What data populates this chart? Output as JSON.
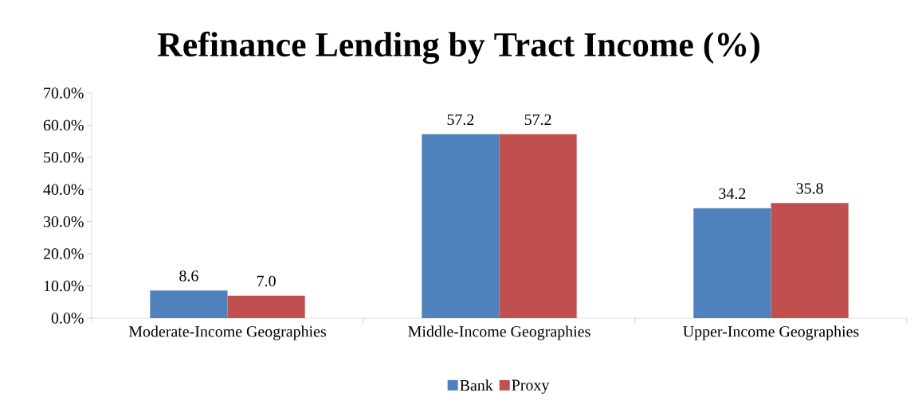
{
  "chart_data": {
    "type": "bar",
    "title": "Refinance Lending by Tract Income (%)",
    "categories": [
      "Moderate-Income Geographies",
      "Middle-Income Geographies",
      "Upper-Income Geographies"
    ],
    "series": [
      {
        "name": "Bank",
        "color": "#4f81bd",
        "values": [
          8.6,
          57.2,
          34.2
        ],
        "value_labels": [
          "8.6",
          "57.2",
          "34.2"
        ]
      },
      {
        "name": "Proxy",
        "color": "#c0504d",
        "values": [
          7.0,
          57.2,
          35.8
        ],
        "value_labels": [
          "7.0",
          "57.2",
          "35.8"
        ]
      }
    ],
    "ylim": [
      0,
      70
    ],
    "yticks": [
      {
        "value": 0,
        "label": "0.0%"
      },
      {
        "value": 10,
        "label": "10.0%"
      },
      {
        "value": 20,
        "label": "20.0%"
      },
      {
        "value": 30,
        "label": "30.0%"
      },
      {
        "value": 40,
        "label": "40.0%"
      },
      {
        "value": 50,
        "label": "50.0%"
      },
      {
        "value": 60,
        "label": "60.0%"
      },
      {
        "value": 70,
        "label": "70.0%"
      }
    ],
    "grid": false,
    "legend": "bottom"
  }
}
